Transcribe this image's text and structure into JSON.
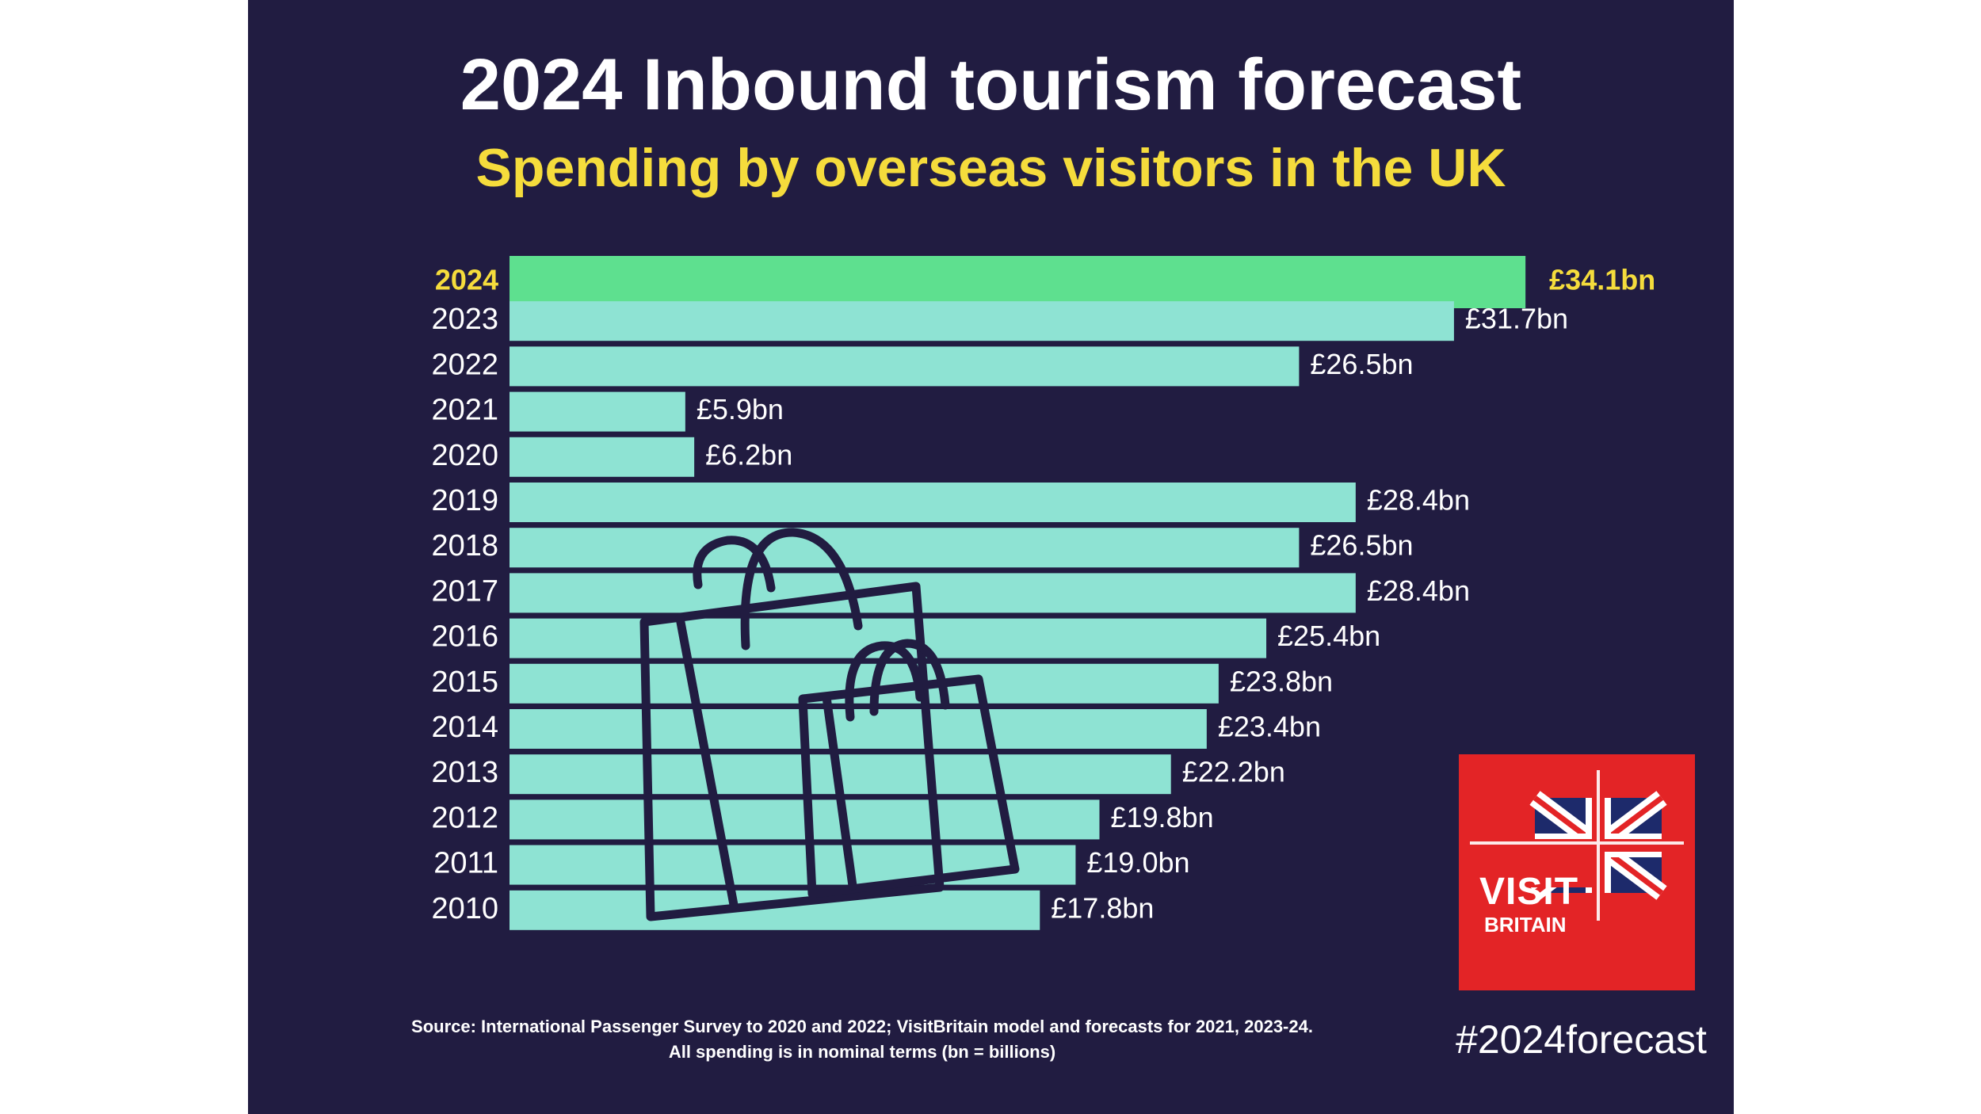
{
  "title": "2024 Inbound tourism forecast",
  "subtitle": "Spending by overseas visitors in the UK",
  "source_line_1": "Source: International Passenger Survey to 2020 and 2022; VisitBritain model and forecasts for 2021, 2023-24.",
  "source_line_2": "All spending is in nominal terms (bn = billions)",
  "hashtag": "#2024forecast",
  "logo": {
    "line1": "VISIT",
    "line2": "BRITAIN"
  },
  "colors": {
    "background": "#211c41",
    "bar": "#8ee3d3",
    "highlight_bar": "#5ee08f",
    "highlight_text": "#f5dc3c",
    "text": "#ffffff",
    "logo_bg": "#e32426",
    "icon": "#211c41"
  },
  "icon": "shopping-bags-icon",
  "chart_data": {
    "type": "bar",
    "orientation": "horizontal",
    "highlight": "2024",
    "categories": [
      "2024",
      "2023",
      "2022",
      "2021",
      "2020",
      "2019",
      "2018",
      "2017",
      "2016",
      "2015",
      "2014",
      "2013",
      "2012",
      "2011",
      "2010"
    ],
    "values": [
      34.1,
      31.7,
      26.5,
      5.9,
      6.2,
      28.4,
      26.5,
      28.4,
      25.4,
      23.8,
      23.4,
      22.2,
      19.8,
      19.0,
      17.8
    ],
    "labels": [
      "£34.1bn",
      "£31.7bn",
      "£26.5bn",
      "£5.9bn",
      "£6.2bn",
      "£28.4bn",
      "£26.5bn",
      "£28.4bn",
      "£25.4bn",
      "£23.8bn",
      "£23.4bn",
      "£22.2bn",
      "£19.8bn",
      "£19.0bn",
      "£17.8bn"
    ],
    "unit": "£bn",
    "grid": false,
    "legend": "none"
  }
}
